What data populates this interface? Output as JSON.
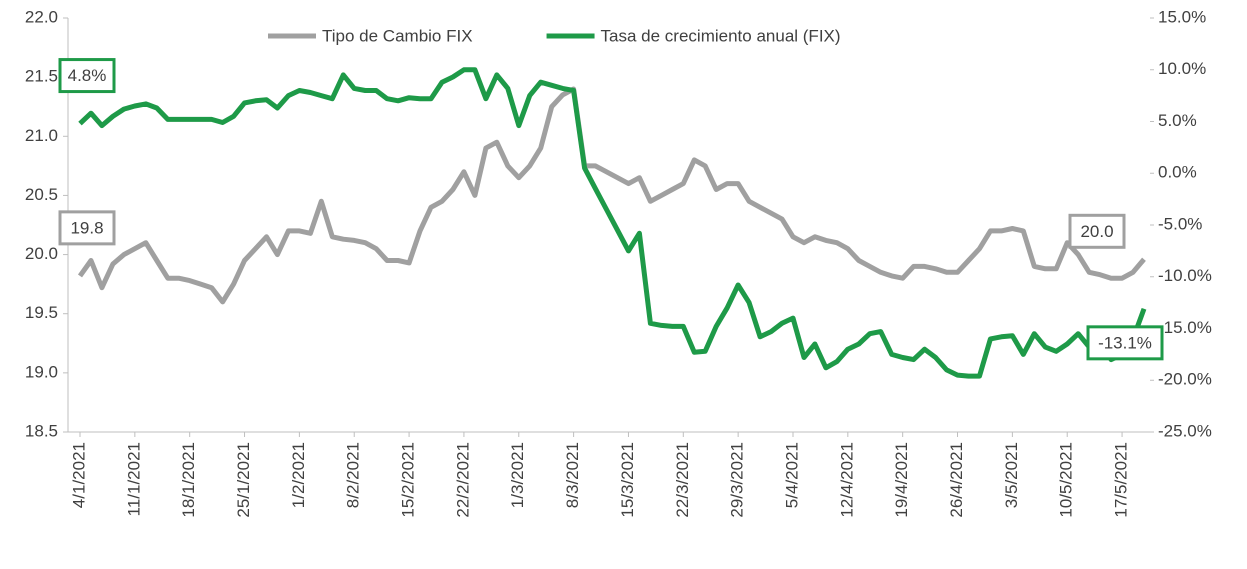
{
  "chart_data": {
    "type": "line",
    "categories": [
      "4/1/2021",
      null,
      null,
      null,
      null,
      "11/1/2021",
      null,
      null,
      null,
      null,
      "18/1/2021",
      null,
      null,
      null,
      null,
      "25/1/2021",
      null,
      null,
      null,
      null,
      "1/2/2021",
      null,
      null,
      null,
      null,
      "8/2/2021",
      null,
      null,
      null,
      null,
      "15/2/2021",
      null,
      null,
      null,
      null,
      "22/2/2021",
      null,
      null,
      null,
      null,
      "1/3/2021",
      null,
      null,
      null,
      null,
      "8/3/2021",
      null,
      null,
      null,
      null,
      "15/3/2021",
      null,
      null,
      null,
      null,
      "22/3/2021",
      null,
      null,
      null,
      null,
      "29/3/2021",
      null,
      null,
      null,
      null,
      "5/4/2021",
      null,
      null,
      null,
      null,
      "12/4/2021",
      null,
      null,
      null,
      null,
      "19/4/2021",
      null,
      null,
      null,
      null,
      "26/4/2021",
      null,
      null,
      null,
      null,
      "3/5/2021",
      null,
      null,
      null,
      null,
      "10/5/2021",
      null,
      null,
      null,
      null,
      "17/5/2021",
      null,
      null
    ],
    "series": [
      {
        "name": "Tipo de Cambio FIX",
        "color": "#a0a0a0",
        "values": [
          19.82,
          19.95,
          19.72,
          19.92,
          20.0,
          20.05,
          20.1,
          19.95,
          19.8,
          19.8,
          19.78,
          19.75,
          19.72,
          19.6,
          19.75,
          19.95,
          20.05,
          20.15,
          20.0,
          20.2,
          20.2,
          20.18,
          20.45,
          20.15,
          20.13,
          20.12,
          20.1,
          20.05,
          19.95,
          19.95,
          19.93,
          20.2,
          20.4,
          20.45,
          20.55,
          20.7,
          20.5,
          20.9,
          20.95,
          20.75,
          20.65,
          20.75,
          20.9,
          21.25,
          21.35,
          21.4,
          20.75,
          20.75,
          20.7,
          20.65,
          20.6,
          20.65,
          20.45,
          20.5,
          20.55,
          20.6,
          20.8,
          20.75,
          20.55,
          20.6,
          20.6,
          20.45,
          20.4,
          20.35,
          20.3,
          20.15,
          20.1,
          20.15,
          20.12,
          20.1,
          20.05,
          19.95,
          19.9,
          19.85,
          19.82,
          19.8,
          19.9,
          19.9,
          19.88,
          19.85,
          19.85,
          19.95,
          20.05,
          20.2,
          20.2,
          20.22,
          20.2,
          19.9,
          19.88,
          19.88,
          20.1,
          20.0,
          19.85,
          19.83,
          19.8,
          19.8,
          19.85,
          19.96
        ],
        "value_labels": [
          "19.8",
          null,
          null,
          null,
          null,
          null,
          null,
          null,
          null,
          null,
          null,
          null,
          null,
          null,
          null,
          null,
          null,
          null,
          null,
          null,
          null,
          null,
          null,
          null,
          null,
          null,
          null,
          null,
          null,
          null,
          null,
          null,
          null,
          null,
          null,
          null,
          null,
          null,
          null,
          null,
          null,
          null,
          null,
          null,
          null,
          null,
          null,
          null,
          null,
          null,
          null,
          null,
          null,
          null,
          null,
          null,
          null,
          null,
          null,
          null,
          null,
          null,
          null,
          null,
          null,
          null,
          null,
          null,
          null,
          null,
          null,
          null,
          null,
          null,
          null,
          null,
          null,
          null,
          null,
          null,
          null,
          null,
          null,
          null,
          null,
          null,
          null,
          null,
          null,
          null,
          null,
          null,
          null,
          null,
          null,
          null,
          null,
          "20.0"
        ]
      },
      {
        "name": "Tasa de crecimiento anual (FIX)",
        "color": "#1e9a48",
        "axis": "y2",
        "values": [
          4.8,
          5.8,
          4.6,
          5.5,
          6.2,
          6.5,
          6.7,
          6.3,
          5.2,
          5.2,
          5.2,
          5.2,
          5.2,
          4.9,
          5.5,
          6.8,
          7.0,
          7.1,
          6.3,
          7.5,
          8.0,
          7.8,
          7.5,
          7.2,
          9.5,
          8.2,
          8.0,
          8.0,
          7.2,
          7.0,
          7.3,
          7.2,
          7.2,
          8.8,
          9.3,
          10.0,
          10.0,
          7.2,
          9.5,
          8.2,
          4.6,
          7.5,
          8.8,
          8.5,
          8.2,
          8.0,
          0.5,
          -1.5,
          -3.5,
          -5.5,
          -7.5,
          -5.8,
          -14.5,
          -14.7,
          -14.8,
          -14.8,
          -17.3,
          -17.2,
          -14.8,
          -13.0,
          -10.8,
          -12.5,
          -15.8,
          -15.3,
          -14.5,
          -14.0,
          -17.8,
          -16.5,
          -18.8,
          -18.2,
          -17.0,
          -16.5,
          -15.5,
          -15.3,
          -17.5,
          -17.8,
          -18.0,
          -17.0,
          -17.8,
          -19.0,
          -19.5,
          -19.6,
          -19.6,
          -16.0,
          -15.8,
          -15.7,
          -17.5,
          -15.5,
          -16.8,
          -17.2,
          -16.5,
          -15.5,
          -16.8,
          -16.5,
          -18.0,
          -17.5,
          -16.0,
          -13.1
        ],
        "value_labels": [
          "4.8%",
          null,
          null,
          null,
          null,
          null,
          null,
          null,
          null,
          null,
          null,
          null,
          null,
          null,
          null,
          null,
          null,
          null,
          null,
          null,
          null,
          null,
          null,
          null,
          null,
          null,
          null,
          null,
          null,
          null,
          null,
          null,
          null,
          null,
          null,
          null,
          null,
          null,
          null,
          null,
          null,
          null,
          null,
          null,
          null,
          null,
          null,
          null,
          null,
          null,
          null,
          null,
          null,
          null,
          null,
          null,
          null,
          null,
          null,
          null,
          null,
          null,
          null,
          null,
          null,
          null,
          null,
          null,
          null,
          null,
          null,
          null,
          null,
          null,
          null,
          null,
          null,
          null,
          null,
          null,
          null,
          null,
          null,
          null,
          null,
          null,
          null,
          null,
          null,
          null,
          null,
          null,
          null,
          null,
          null,
          null,
          null,
          "-13.1%"
        ]
      }
    ],
    "ylim": [
      18.5,
      22.0
    ],
    "yticks": [
      18.5,
      {
        "value": 19,
        "label": "19.0"
      },
      19.5,
      {
        "value": 20,
        "label": "20.0"
      },
      20.5,
      {
        "value": 21,
        "label": "21.0"
      },
      21.5,
      {
        "value": 22,
        "label": "22.0"
      }
    ],
    "y2lim": [
      -25,
      15
    ],
    "y2ticks": [
      {
        "value": -25,
        "label": "-25.0%"
      },
      {
        "value": -20,
        "label": "-20.0%"
      },
      {
        "value": -15,
        "label": "-15.0%"
      },
      {
        "value": -10,
        "label": "-10.0%"
      },
      {
        "value": -5,
        "label": "-5.0%"
      },
      {
        "value": 0,
        "label": "0.0%"
      },
      {
        "value": 5,
        "label": "5.0%"
      },
      {
        "value": 10,
        "label": "10.0%"
      },
      {
        "value": 15,
        "label": "15.0%"
      }
    ],
    "legend": "top"
  }
}
